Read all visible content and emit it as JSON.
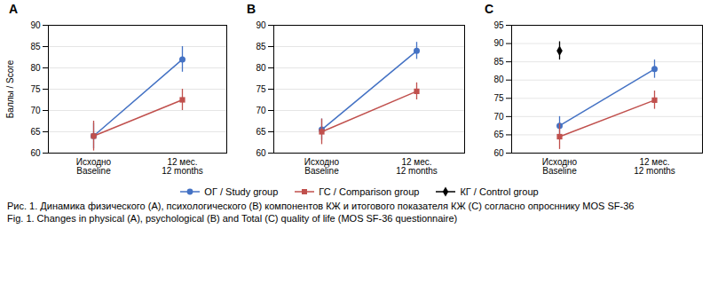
{
  "chart_data": [
    {
      "type": "line",
      "title": "A",
      "categories": [
        "Исходно\nBaseline",
        "12 мес.\n12 months"
      ],
      "y_label": "Баллы / Score",
      "ylim": [
        60,
        90
      ],
      "yticks": [
        60,
        65,
        70,
        75,
        80,
        85,
        90
      ],
      "grid": true,
      "series": [
        {
          "name": "ОГ / Study group",
          "color": "#4472C4",
          "marker": "circle",
          "values": [
            64,
            82
          ],
          "errors": [
            3,
            3
          ]
        },
        {
          "name": "ГС / Comparison group",
          "color": "#C0504D",
          "marker": "square",
          "values": [
            64,
            72.5
          ],
          "errors": [
            3.5,
            2.5
          ]
        }
      ]
    },
    {
      "type": "line",
      "title": "B",
      "categories": [
        "Исходно\nBaseline",
        "12 мес.\n12 months"
      ],
      "ylim": [
        60,
        90
      ],
      "yticks": [
        60,
        65,
        70,
        75,
        80,
        85,
        90
      ],
      "grid": true,
      "series": [
        {
          "name": "ОГ / Study group",
          "color": "#4472C4",
          "marker": "circle",
          "values": [
            65.5,
            84
          ],
          "errors": [
            2.5,
            2
          ]
        },
        {
          "name": "ГС / Comparison group",
          "color": "#C0504D",
          "marker": "square",
          "values": [
            65,
            74.5
          ],
          "errors": [
            3,
            2
          ]
        }
      ]
    },
    {
      "type": "line",
      "title": "C",
      "categories": [
        "Исходно\nBaseline",
        "12 мес.\n12 months"
      ],
      "ylim": [
        60,
        95
      ],
      "yticks": [
        60,
        65,
        70,
        75,
        80,
        85,
        90,
        95
      ],
      "grid": true,
      "series": [
        {
          "name": "ОГ / Study group",
          "color": "#4472C4",
          "marker": "circle",
          "values": [
            67.5,
            83
          ],
          "errors": [
            2.5,
            2.5
          ]
        },
        {
          "name": "ГС / Comparison group",
          "color": "#C0504D",
          "marker": "square",
          "values": [
            64.5,
            74.5
          ],
          "errors": [
            3.5,
            2.5
          ]
        },
        {
          "name": "КГ / Control group",
          "color": "#000000",
          "marker": "diamond",
          "values": [
            88,
            null
          ],
          "errors": [
            2.5,
            null
          ]
        }
      ]
    }
  ],
  "legend": "bottom",
  "caption": [
    "Рис. 1. Динамика физического (А), психологического (B) компонентов КЖ и итогового показателя КЖ (C) согласно опросннику MOS SF-36",
    "Fig. 1. Changes in physical (A), psychological (B) and Total (C) quality of life (MOS SF-36 questionnaire)"
  ]
}
